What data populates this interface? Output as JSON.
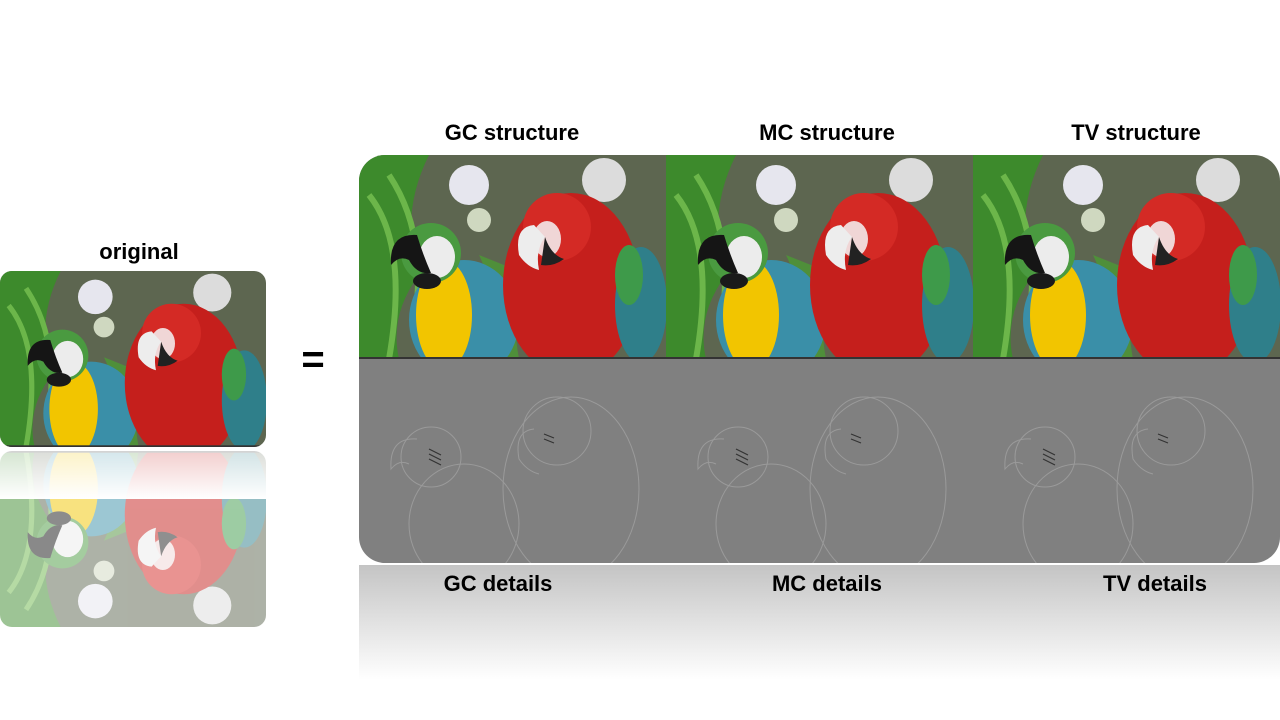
{
  "original_label": "original",
  "operator": "=",
  "structure_labels": [
    "GC structure",
    "MC structure",
    "TV structure"
  ],
  "detail_labels": [
    "GC details",
    "MC details",
    "TV details"
  ]
}
